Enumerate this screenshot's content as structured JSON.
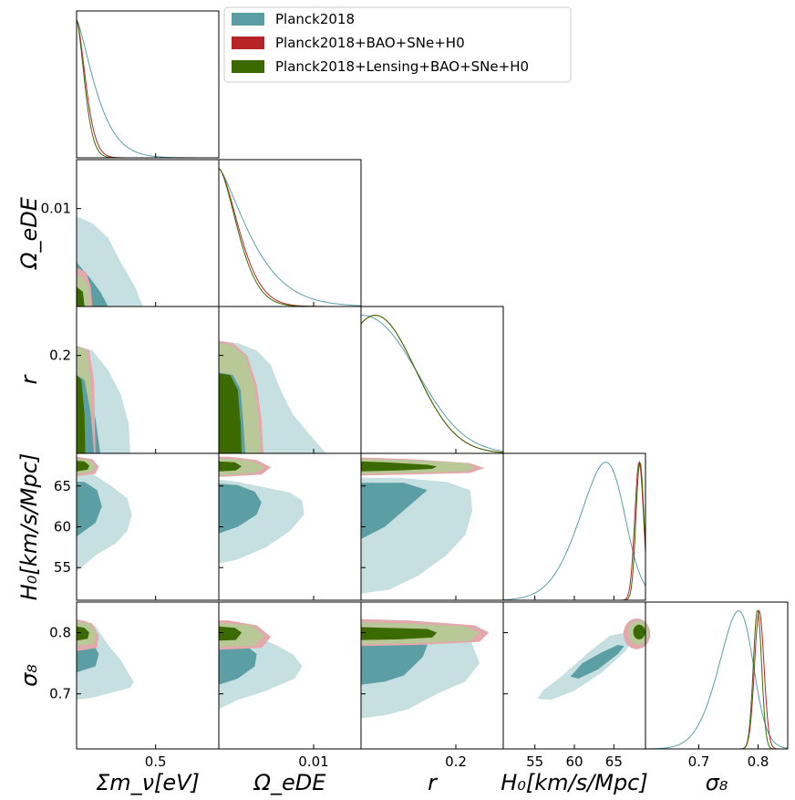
{
  "chart_data": {
    "type": "triangle-corner",
    "title": "",
    "parameters": [
      {
        "key": "mnu",
        "label": "Σm_ν[eV]",
        "range": [
          0.0,
          0.9
        ],
        "ticks": [
          0.5
        ],
        "tick_labels": [
          "0.5"
        ]
      },
      {
        "key": "omede",
        "label": "Ω_eDE",
        "range": [
          0.0,
          0.015
        ],
        "ticks": [
          0.01
        ],
        "tick_labels": [
          "0.01"
        ]
      },
      {
        "key": "r",
        "label": "r",
        "range": [
          0.0,
          0.3
        ],
        "ticks": [
          0.2
        ],
        "tick_labels": [
          "0.2"
        ]
      },
      {
        "key": "H0",
        "label": "H₀[km/s/Mpc]",
        "range": [
          51,
          69
        ],
        "ticks": [
          55,
          60,
          65
        ],
        "tick_labels": [
          "55",
          "60",
          "65"
        ]
      },
      {
        "key": "s8",
        "label": "σ₈",
        "range": [
          0.61,
          0.85
        ],
        "ticks": [
          0.7,
          0.8
        ],
        "tick_labels": [
          "0.7",
          "0.8"
        ]
      }
    ],
    "series": [
      {
        "name": "Planck2018",
        "color": "#5b9ea3",
        "marginals": {
          "mnu": {
            "peak": 0.0,
            "width": 0.16
          },
          "omede": {
            "peak": 0.0,
            "width": 0.0045
          },
          "r": {
            "peak": 0.0,
            "width": 0.12
          },
          "H0": {
            "peak": 64.9,
            "width": 3.5
          },
          "s8": {
            "peak": 0.778,
            "width": 0.035
          }
        }
      },
      {
        "name": "Planck2018+BAO+SNe+H0",
        "color": "#b82328",
        "marginals": {
          "mnu": {
            "peak": 0.0,
            "width": 0.08
          },
          "omede": {
            "peak": 0.0,
            "width": 0.003
          },
          "r": {
            "peak": 0.02,
            "width": 0.1
          },
          "H0": {
            "peak": 68.2,
            "width": 0.55
          },
          "s8": {
            "peak": 0.802,
            "width": 0.008
          }
        }
      },
      {
        "name": "Planck2018+Lensing+BAO+SNe+H0",
        "color": "#3b6a00",
        "marginals": {
          "mnu": {
            "peak": 0.0,
            "width": 0.07
          },
          "omede": {
            "peak": 0.0,
            "width": 0.0028
          },
          "r": {
            "peak": 0.025,
            "width": 0.1
          },
          "H0": {
            "peak": 68.3,
            "width": 0.5
          },
          "s8": {
            "peak": 0.799,
            "width": 0.007
          }
        }
      }
    ],
    "legend": {
      "placement": "top-right",
      "entries": [
        "Planck2018",
        "Planck2018+BAO+SNe+H0",
        "Planck2018+Lensing+BAO+SNe+H0"
      ]
    },
    "contour_levels": [
      "68%",
      "95%"
    ]
  },
  "colors": {
    "planck": "#5b9ea3",
    "planck_light": "#c6dfe1",
    "bao": "#b82328",
    "bao_light": "#e2a8ab",
    "lens": "#3b6a00",
    "lens_light": "#b8c896"
  }
}
